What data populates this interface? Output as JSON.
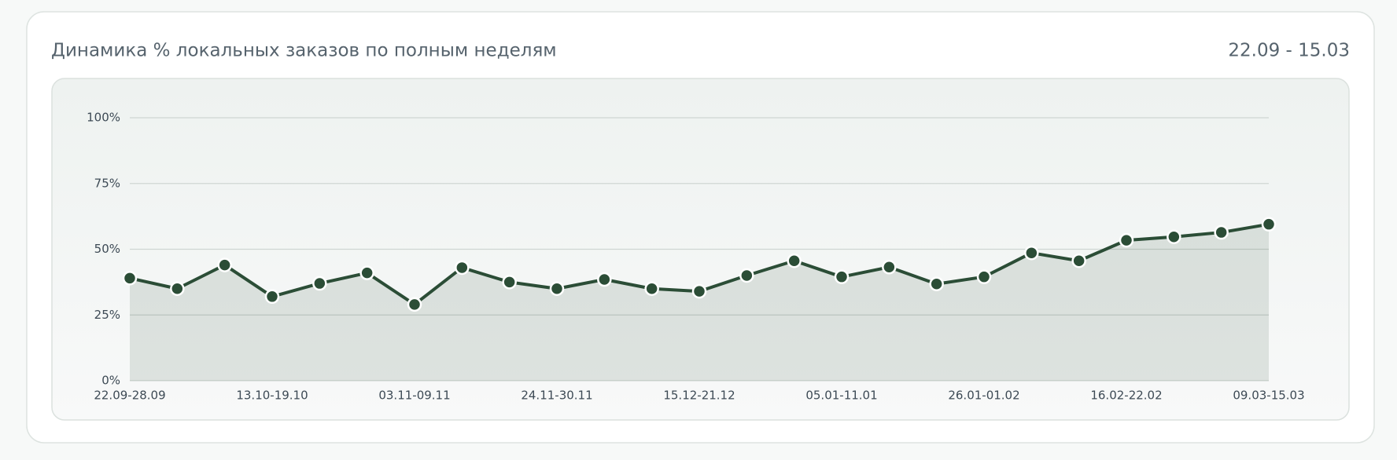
{
  "header": {
    "title": "Динамика % локальных заказов по полным неделям",
    "date_range": "22.09 - 15.03"
  },
  "chart_data": {
    "type": "line",
    "categories": [
      "22.09-28.09",
      null,
      null,
      "13.10-19.10",
      null,
      null,
      "03.11-09.11",
      null,
      null,
      "24.11-30.11",
      null,
      null,
      "15.12-21.12",
      null,
      null,
      "05.01-11.01",
      null,
      null,
      "26.01-01.02",
      null,
      null,
      "16.02-22.02",
      null,
      null,
      "09.03-15.03"
    ],
    "series": [
      {
        "name": "% локальных заказов",
        "color": "#2b4d36",
        "values": [
          39,
          35,
          44,
          32,
          37,
          41,
          29,
          43,
          37.5,
          35,
          38.5,
          35,
          34,
          40,
          45.6,
          39.5,
          43.2,
          36.8,
          39.5,
          48.6,
          45.6,
          53.4,
          54.7,
          56.4,
          59.5
        ]
      }
    ],
    "ylim": [
      0,
      100
    ],
    "yticks": [
      {
        "value": 0,
        "label": "0%"
      },
      {
        "value": 25,
        "label": "25%"
      },
      {
        "value": 50,
        "label": "50%"
      },
      {
        "value": 75,
        "label": "75%"
      },
      {
        "value": 100,
        "label": "100%"
      }
    ],
    "grid": true,
    "area": true
  }
}
